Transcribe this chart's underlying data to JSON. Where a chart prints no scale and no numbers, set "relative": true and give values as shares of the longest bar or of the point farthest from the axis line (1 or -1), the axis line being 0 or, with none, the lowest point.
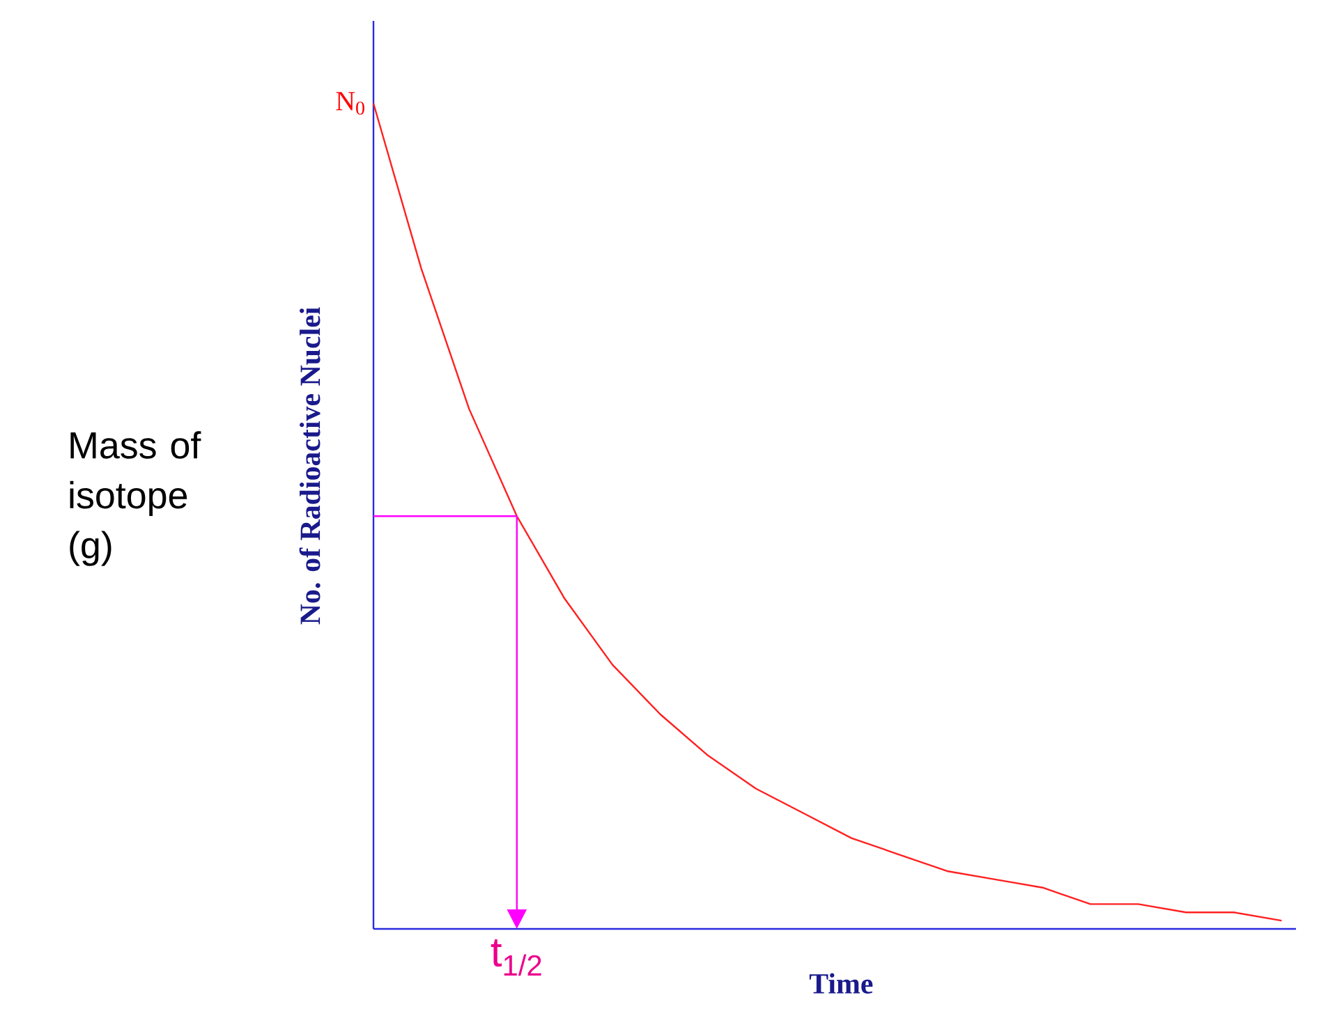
{
  "chart_data": {
    "type": "line",
    "relative": true,
    "ylabel": "No. of Radioactive Nuclei",
    "xlabel": "Time",
    "annotations": [
      "Mass of isotope (g)",
      "t$_{1/2}$",
      "N$_{0}$"
    ],
    "categories": [
      null,
      null,
      null,
      null,
      null,
      null,
      null,
      null,
      null,
      null,
      null,
      null,
      null,
      null,
      null,
      null,
      null,
      null,
      null,
      null
    ],
    "grid": false,
    "marker": "none",
    "series": [
      {
        "color": "#ff2020",
        "values": [
          1.0,
          0.8,
          0.63,
          0.5,
          0.4,
          0.32,
          0.26,
          0.21,
          0.17,
          0.14,
          0.11,
          0.09,
          0.07,
          0.06,
          0.05,
          0.03,
          0.03,
          0.02,
          0.02,
          0.01
        ]
      },
      {
        "color": "#ff00ff",
        "values": [
          0.5,
          0.5,
          0.5,
          0.5,
          null,
          null,
          null,
          null,
          null,
          null,
          null,
          null,
          null,
          null,
          null,
          null,
          null,
          null,
          null,
          null
        ]
      }
    ]
  }
}
